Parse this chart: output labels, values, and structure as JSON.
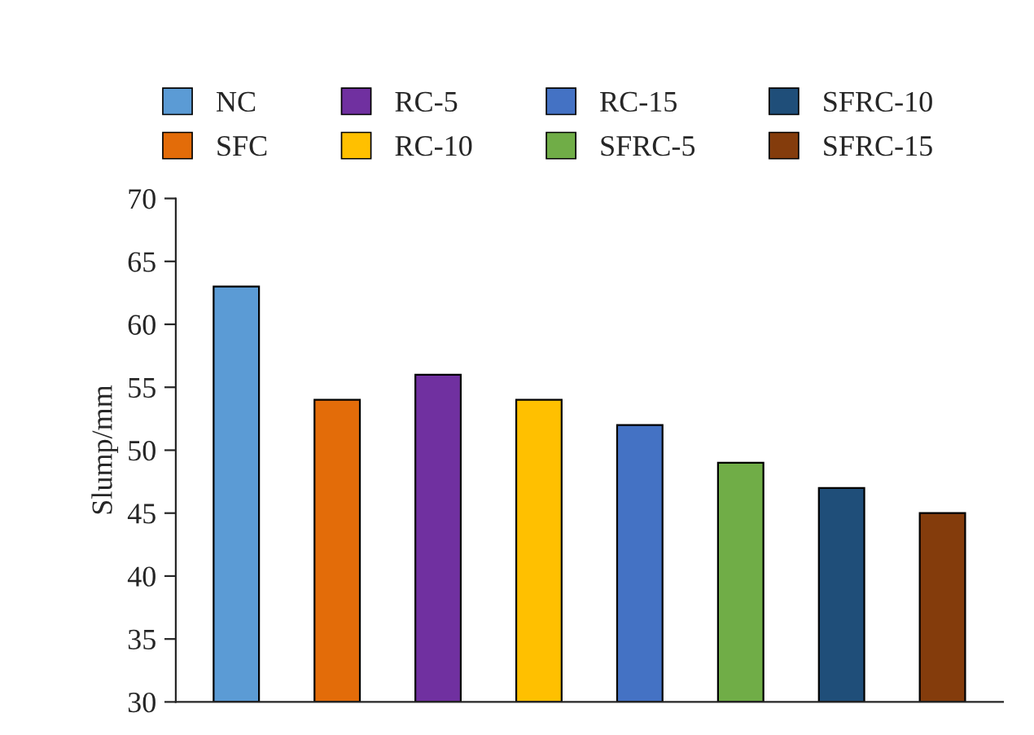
{
  "chart_data": {
    "type": "bar",
    "ylabel": "Slump/mm",
    "categories": [
      null,
      null,
      null,
      null,
      null,
      null,
      null,
      null
    ],
    "series": [
      {
        "name": "NC",
        "color": "#5b9bd5",
        "values": [
          63,
          null,
          null,
          null,
          null,
          null,
          null,
          null
        ]
      },
      {
        "name": "SFC",
        "color": "#e36c09",
        "values": [
          null,
          54,
          null,
          null,
          null,
          null,
          null,
          null
        ]
      },
      {
        "name": "RC-5",
        "color": "#7030a0",
        "values": [
          null,
          null,
          56,
          null,
          null,
          null,
          null,
          null
        ]
      },
      {
        "name": "RC-10",
        "color": "#ffc000",
        "values": [
          null,
          null,
          null,
          54,
          null,
          null,
          null,
          null
        ]
      },
      {
        "name": "RC-15",
        "color": "#4472c4",
        "values": [
          null,
          null,
          null,
          null,
          52,
          null,
          null,
          null
        ]
      },
      {
        "name": "SFRC-5",
        "color": "#70ad47",
        "values": [
          null,
          null,
          null,
          null,
          null,
          49,
          null,
          null
        ]
      },
      {
        "name": "SFRC-10",
        "color": "#1f4e79",
        "values": [
          null,
          null,
          null,
          null,
          null,
          null,
          47,
          null
        ]
      },
      {
        "name": "SFRC-15",
        "color": "#843c0c",
        "values": [
          null,
          null,
          null,
          null,
          null,
          null,
          null,
          45
        ]
      }
    ],
    "ylim": [
      30,
      70
    ],
    "yticks": [
      30,
      35,
      40,
      45,
      50,
      55,
      60,
      65,
      70
    ],
    "grid": false,
    "legend": "top"
  }
}
